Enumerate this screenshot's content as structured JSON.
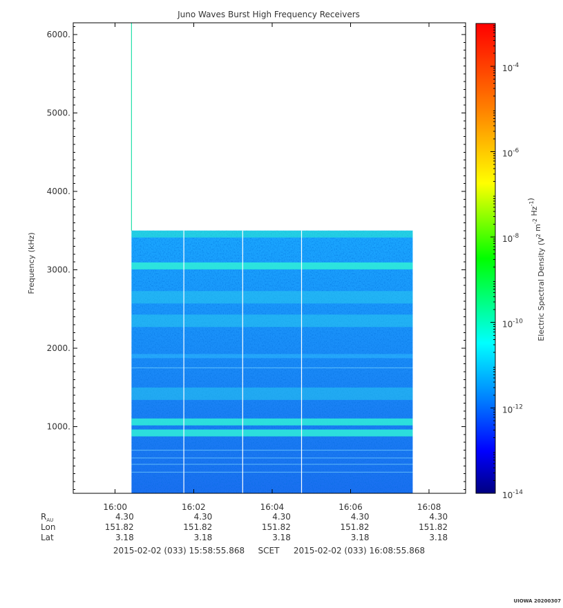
{
  "chart_data": {
    "type": "heatmap",
    "title": "Juno Waves Burst High Frequency Receivers",
    "ylabel": "Frequency (kHz)",
    "y_ticks": [
      {
        "value": 6000,
        "label": "6000."
      },
      {
        "value": 5000,
        "label": "5000."
      },
      {
        "value": 4000,
        "label": "4000."
      },
      {
        "value": 3000,
        "label": "3000."
      },
      {
        "value": 2000,
        "label": "2000."
      },
      {
        "value": 1000,
        "label": "1000."
      }
    ],
    "ylim": [
      150,
      6150
    ],
    "x_axis": {
      "start": "15:58:55.868",
      "end": "16:08:55.868",
      "ticks": [
        "16:00",
        "16:02",
        "16:04",
        "16:06",
        "16:08"
      ]
    },
    "data_extent": {
      "t_start": "16:00:25",
      "t_end": "16:07:35",
      "f_max_khz": 3500
    },
    "bands_khz": [
      {
        "freq": 3050,
        "intensity": "high"
      },
      {
        "freq": 2650,
        "intensity": "moderate"
      },
      {
        "freq": 2350,
        "intensity": "moderate"
      },
      {
        "freq": 1900,
        "intensity": "low"
      },
      {
        "freq": 1420,
        "intensity": "moderate"
      },
      {
        "freq": 1060,
        "intensity": "high"
      },
      {
        "freq": 920,
        "intensity": "high"
      }
    ],
    "gaps": [
      "16:01:45",
      "16:03:15",
      "16:04:45"
    ],
    "spike": {
      "time": "16:00:25",
      "freq_range_khz": [
        3500,
        6150
      ]
    },
    "colorbar": {
      "label": "Electric Spectral Density (V^2 m^-2 Hz^-1)",
      "scale": "log",
      "range": [
        1e-14,
        0.001
      ],
      "ticks": [
        {
          "exp": "-4",
          "value": 0.0001
        },
        {
          "exp": "-6",
          "value": 1e-06
        },
        {
          "exp": "-8",
          "value": 1e-08
        },
        {
          "exp": "-10",
          "value": 1e-10
        },
        {
          "exp": "-12",
          "value": 1e-12
        },
        {
          "exp": "-14",
          "value": 1e-14
        }
      ],
      "tick_base": "10",
      "colors": [
        "#000080",
        "#0000ff",
        "#007fff",
        "#00ffff",
        "#00ff00",
        "#ffff00",
        "#ff7f00",
        "#ff0000"
      ]
    }
  },
  "ephemeris": {
    "rows": [
      {
        "label": "R",
        "sub": "AU",
        "values": [
          "4.30",
          "4.30",
          "4.30",
          "4.30",
          "4.30"
        ]
      },
      {
        "label": "Lon",
        "sub": "",
        "values": [
          "151.82",
          "151.82",
          "151.82",
          "151.82",
          "151.82"
        ]
      },
      {
        "label": "Lat",
        "sub": "",
        "values": [
          "3.18",
          "3.18",
          "3.18",
          "3.18",
          "3.18"
        ]
      }
    ]
  },
  "time_range": {
    "start": "2015-02-02 (033) 15:58:55.868",
    "frame": "SCET",
    "end": "2015-02-02 (033) 16:08:55.868"
  },
  "stamp": "UIOWA 20200307"
}
